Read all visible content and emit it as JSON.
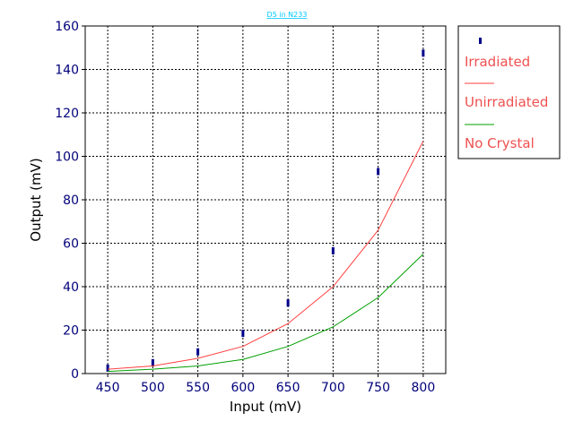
{
  "chart_data": {
    "type": "line",
    "title": "D5 in N233",
    "xlabel": "Input (mV)",
    "ylabel": "Output (mV)",
    "xlim": [
      425,
      825
    ],
    "ylim": [
      0,
      160
    ],
    "x_ticks": [
      450,
      500,
      550,
      600,
      650,
      700,
      750,
      800
    ],
    "y_ticks": [
      0,
      20,
      40,
      60,
      80,
      100,
      120,
      140,
      160
    ],
    "grid": true,
    "legend_position": "right",
    "x": [
      450,
      500,
      550,
      600,
      650,
      700,
      750,
      800
    ],
    "series": [
      {
        "name": "Irradiated",
        "kind": "points",
        "color": "#00008b",
        "values": [
          2.5,
          5,
          10,
          18.5,
          32.5,
          56.5,
          93,
          147.5
        ]
      },
      {
        "name": "Unirradiated",
        "kind": "line",
        "color": "#ff4040",
        "values": [
          2,
          3.5,
          7,
          12.5,
          23,
          40,
          66,
          107
        ]
      },
      {
        "name": "No Crystal",
        "kind": "line",
        "color": "#00a000",
        "values": [
          1,
          2,
          3.5,
          6.5,
          12.5,
          21.5,
          35,
          55
        ]
      }
    ]
  }
}
